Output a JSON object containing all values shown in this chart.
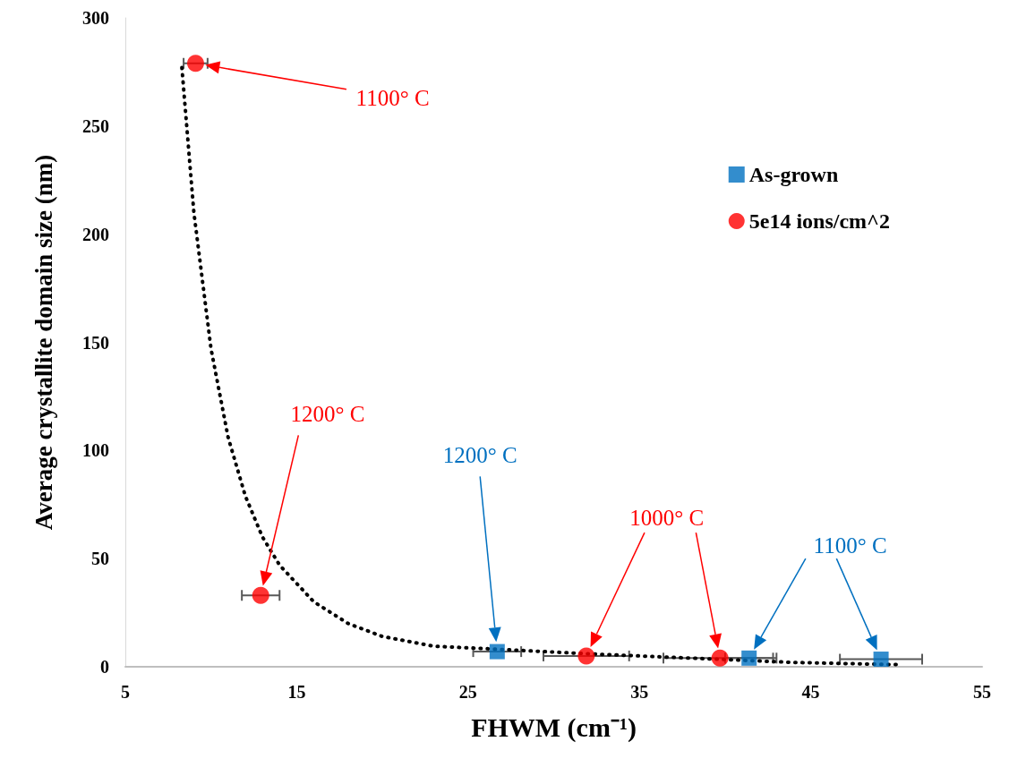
{
  "chart_data": {
    "type": "scatter",
    "xlabel": "FHWM (cm⁻¹)",
    "ylabel": "Average crystallite domain size (nm)",
    "xlim": [
      5,
      55
    ],
    "xticks": [
      5,
      15,
      25,
      35,
      45,
      55
    ],
    "ylim": [
      0,
      300
    ],
    "yticks": [
      0,
      50,
      100,
      150,
      200,
      250,
      300
    ],
    "grid": false,
    "legend": "top right",
    "series": [
      {
        "name": "As-grown",
        "color": "#0070c0",
        "marker": "square",
        "x": [
          26.7,
          41.4,
          49.1
        ],
        "values": [
          7,
          4,
          3.5
        ],
        "xerrors": [
          1.4,
          1.4,
          2.4
        ]
      },
      {
        "name": "5e14 ions/cm^2",
        "color": "#ff0000",
        "marker": "circle",
        "x": [
          9.1,
          12.9,
          31.9,
          39.7
        ],
        "values": [
          279,
          33,
          5,
          4
        ],
        "xerrors": [
          0.7,
          1.1,
          2.5,
          3.3
        ]
      },
      {
        "type": "line",
        "color": "#000000",
        "marker": "none",
        "line_style": "dotted",
        "x": [
          8.3,
          9,
          10,
          11,
          12,
          13,
          14,
          16,
          18,
          20,
          23,
          27,
          32,
          38,
          44,
          50
        ],
        "values": [
          277,
          210,
          147,
          106,
          79,
          60,
          47,
          30,
          20,
          14,
          9.5,
          8,
          6,
          4,
          2,
          1
        ]
      }
    ],
    "annotations": [
      "1100° C",
      "1200° C",
      "1200° C",
      "1000° C",
      "1100° C"
    ]
  }
}
